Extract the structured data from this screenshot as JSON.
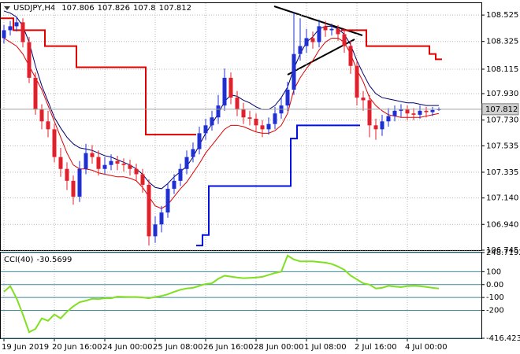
{
  "chart_data": [
    {
      "type": "candlestick",
      "title": "USDJPY,H4",
      "x": [
        "19 Jun 2019",
        null,
        null,
        null,
        null,
        null,
        null,
        null,
        "20 Jun 16:00",
        null,
        null,
        null,
        null,
        null,
        null,
        null,
        "24 Jun 00:00",
        null,
        null,
        null,
        null,
        null,
        null,
        null,
        "25 Jun 08:00",
        null,
        null,
        null,
        null,
        null,
        null,
        null,
        "26 Jun 16:00",
        null,
        null,
        null,
        null,
        null,
        null,
        null,
        "28 Jun 00:00",
        null,
        null,
        null,
        null,
        null,
        null,
        null,
        "1 Jul 08:00",
        null,
        null,
        null,
        null,
        null,
        null,
        null,
        "2 Jul 16:00",
        null,
        null,
        null,
        null,
        null,
        null,
        null,
        "4 Jul 00:00",
        null,
        null,
        null,
        null,
        null
      ],
      "open": [
        108.35,
        108.41,
        108.44,
        108.47,
        108.32,
        108.05,
        107.81,
        107.72,
        107.66,
        107.45,
        107.36,
        107.27,
        107.15,
        107.36,
        107.48,
        107.45,
        107.36,
        107.39,
        107.42,
        107.4,
        107.39,
        107.36,
        107.32,
        107.24,
        106.85,
        106.94,
        107.03,
        107.21,
        107.27,
        107.36,
        107.45,
        107.51,
        107.63,
        107.69,
        107.75,
        107.84,
        108.05,
        107.9,
        107.81,
        107.75,
        107.74,
        107.69,
        107.66,
        107.7,
        107.78,
        107.84,
        107.96,
        108.23,
        108.29,
        108.35,
        108.32,
        108.44,
        108.41,
        108.42,
        108.38,
        108.29,
        108.14,
        107.9,
        107.88,
        107.69,
        107.66,
        107.72,
        107.76,
        107.8,
        107.81,
        107.78,
        107.77,
        107.8,
        107.79,
        107.806
      ],
      "high": [
        108.45,
        108.48,
        108.51,
        108.5,
        108.36,
        108.09,
        107.85,
        107.8,
        107.7,
        107.52,
        107.41,
        107.31,
        107.42,
        107.55,
        107.54,
        107.5,
        107.45,
        107.47,
        107.46,
        107.44,
        107.43,
        107.4,
        107.36,
        107.28,
        107.0,
        107.08,
        107.25,
        107.32,
        107.4,
        107.5,
        107.56,
        107.68,
        107.74,
        107.8,
        107.92,
        108.12,
        108.09,
        107.95,
        107.86,
        107.8,
        107.78,
        107.73,
        107.75,
        107.83,
        107.9,
        108.02,
        108.55,
        108.5,
        108.42,
        108.4,
        108.49,
        108.48,
        108.46,
        108.45,
        108.42,
        108.33,
        108.18,
        107.95,
        107.92,
        107.74,
        107.77,
        107.82,
        107.84,
        107.85,
        107.84,
        107.82,
        107.84,
        107.83,
        107.83,
        107.826
      ],
      "low": [
        108.31,
        108.37,
        108.4,
        108.28,
        108.01,
        107.77,
        107.66,
        107.6,
        107.41,
        107.3,
        107.2,
        107.09,
        107.11,
        107.32,
        107.4,
        107.31,
        107.32,
        107.35,
        107.35,
        107.34,
        107.31,
        107.27,
        107.18,
        106.78,
        106.8,
        106.88,
        106.99,
        107.17,
        107.23,
        107.32,
        107.41,
        107.47,
        107.58,
        107.65,
        107.7,
        107.8,
        107.85,
        107.76,
        107.7,
        107.69,
        107.64,
        107.6,
        107.62,
        107.66,
        107.74,
        107.8,
        107.92,
        108.18,
        108.24,
        108.27,
        108.28,
        108.36,
        108.37,
        108.33,
        108.24,
        108.08,
        107.84,
        107.8,
        107.6,
        107.58,
        107.61,
        107.68,
        107.72,
        107.75,
        107.73,
        107.73,
        107.74,
        107.75,
        107.76,
        107.8
      ],
      "close": [
        108.41,
        108.44,
        108.47,
        108.32,
        108.05,
        107.81,
        107.72,
        107.66,
        107.45,
        107.36,
        107.27,
        107.15,
        107.36,
        107.48,
        107.45,
        107.36,
        107.39,
        107.42,
        107.4,
        107.39,
        107.36,
        107.32,
        107.24,
        106.85,
        106.94,
        107.03,
        107.21,
        107.27,
        107.36,
        107.45,
        107.51,
        107.63,
        107.69,
        107.75,
        107.84,
        108.05,
        107.9,
        107.81,
        107.75,
        107.74,
        107.69,
        107.66,
        107.7,
        107.78,
        107.84,
        107.96,
        108.23,
        108.29,
        108.35,
        108.32,
        108.44,
        108.41,
        108.42,
        108.38,
        108.29,
        108.14,
        107.9,
        107.88,
        107.69,
        107.66,
        107.72,
        107.76,
        107.8,
        107.81,
        107.78,
        107.77,
        107.8,
        107.79,
        107.806,
        107.812
      ],
      "up_color": "#1f2fd0",
      "down_color": "#e0202a",
      "series": [
        {
          "color": "#000070",
          "width": 1,
          "values": [
            108.555,
            108.54,
            108.51,
            108.44,
            108.32,
            108.14,
            107.99,
            107.87,
            107.75,
            107.67,
            107.6,
            107.55,
            107.52,
            107.51,
            107.5,
            107.48,
            107.46,
            107.45,
            107.43,
            107.41,
            107.39,
            107.36,
            107.32,
            107.26,
            107.22,
            107.21,
            107.25,
            107.3,
            107.34,
            107.38,
            107.45,
            107.54,
            107.63,
            107.7,
            107.78,
            107.87,
            107.92,
            107.91,
            107.88,
            107.86,
            107.83,
            107.81,
            107.81,
            107.84,
            107.9,
            107.98,
            108.12,
            108.23,
            108.32,
            108.36,
            108.42,
            108.44,
            108.44,
            108.42,
            108.38,
            108.3,
            108.18,
            108.08,
            107.99,
            107.93,
            107.9,
            107.89,
            107.88,
            107.87,
            107.86,
            107.86,
            107.85,
            107.84,
            107.84,
            107.84
          ]
        },
        {
          "color": "#e00000",
          "width": 1,
          "values": [
            108.35,
            108.32,
            108.29,
            108.23,
            108.14,
            108.05,
            107.96,
            107.84,
            107.72,
            107.6,
            107.48,
            107.39,
            107.36,
            107.36,
            107.35,
            107.33,
            107.32,
            107.31,
            107.3,
            107.3,
            107.29,
            107.27,
            107.22,
            107.15,
            107.08,
            107.06,
            107.09,
            107.15,
            107.21,
            107.26,
            107.33,
            107.4,
            107.48,
            107.54,
            107.6,
            107.66,
            107.69,
            107.69,
            107.68,
            107.66,
            107.64,
            107.63,
            107.63,
            107.65,
            107.69,
            107.78,
            107.96,
            108.05,
            108.12,
            108.18,
            108.26,
            108.32,
            108.35,
            108.35,
            108.32,
            108.23,
            108.11,
            108.02,
            107.9,
            107.84,
            107.8,
            107.77,
            107.76,
            107.75,
            107.75,
            107.75,
            107.75,
            107.76,
            107.77,
            107.78
          ]
        },
        {
          "color": "#e00000",
          "width": 2,
          "style": "step",
          "values": [
            108.5,
            108.5,
            108.41,
            108.41,
            108.41,
            108.41,
            108.41,
            108.29,
            108.29,
            108.29,
            108.29,
            108.29,
            108.13,
            108.13,
            108.13,
            108.13,
            108.13,
            108.13,
            108.13,
            108.13,
            108.13,
            108.13,
            108.13,
            107.62,
            107.62,
            107.62,
            107.62,
            107.62,
            107.62,
            107.62,
            107.62,
            null,
            null,
            null,
            null,
            null,
            null,
            null,
            null,
            null,
            null,
            null,
            null,
            null,
            null,
            null,
            null,
            null,
            null,
            null,
            null,
            null,
            null,
            null,
            108.41,
            108.41,
            108.41,
            108.41,
            108.29,
            108.29,
            108.29,
            108.29,
            108.29,
            108.29,
            108.29,
            108.29,
            108.29,
            108.29,
            108.23,
            108.19
          ]
        },
        {
          "color": "#0010e0",
          "width": 2,
          "style": "step",
          "values": [
            null,
            null,
            null,
            null,
            null,
            null,
            null,
            null,
            null,
            null,
            null,
            null,
            null,
            null,
            null,
            null,
            null,
            null,
            null,
            null,
            null,
            null,
            null,
            null,
            null,
            null,
            null,
            null,
            null,
            null,
            null,
            106.78,
            106.86,
            107.23,
            107.23,
            107.23,
            107.23,
            107.23,
            107.23,
            107.23,
            107.23,
            107.23,
            107.23,
            107.23,
            107.23,
            107.23,
            107.59,
            107.69,
            107.69,
            107.69,
            107.69,
            107.69,
            107.69,
            107.69,
            107.69,
            107.69,
            107.69,
            null,
            null,
            null,
            null,
            null,
            null,
            null,
            null,
            null,
            null,
            null,
            null,
            null
          ]
        }
      ],
      "ylim": [
        106.745,
        108.615
      ],
      "yticks": [
        108.525,
        108.325,
        108.115,
        {
          "value": 107.93,
          "label": "107.930"
        },
        {
          "value": 107.73,
          "label": "107.730"
        },
        107.535,
        107.335,
        {
          "value": 107.14,
          "label": "107.140"
        },
        {
          "value": 106.94,
          "label": "106.940"
        },
        106.745
      ],
      "grid": true
    },
    {
      "type": "line",
      "title": "CCI(40)",
      "series": [
        {
          "color": "#80e020",
          "width": 2,
          "values": [
            -56,
            -12,
            -106,
            -231,
            -369,
            -344,
            -262,
            -281,
            -231,
            -262,
            -210,
            -169,
            -137,
            -125,
            -110,
            -112,
            -106,
            -106,
            -94,
            -95,
            -96,
            -96,
            -100,
            -106,
            -96,
            -88,
            -75,
            -56,
            -40,
            -30,
            -25,
            -10,
            5,
            10,
            45,
            69,
            62,
            55,
            50,
            52,
            55,
            60,
            75,
            90,
            100,
            225,
            195,
            180,
            180,
            180,
            175,
            170,
            160,
            140,
            115,
            70,
            40,
            10,
            0,
            -30,
            -25,
            -10,
            -15,
            -20,
            -12,
            -10,
            -12,
            -18,
            -25,
            -30.5699
          ]
        }
      ],
      "ylim": [
        -416.423,
        248.7192
      ],
      "yticks": [
        248.7192,
        100,
        {
          "value": 0,
          "label": "0.00"
        },
        -100,
        -200,
        -416.423
      ],
      "grid": true
    }
  ]
}
